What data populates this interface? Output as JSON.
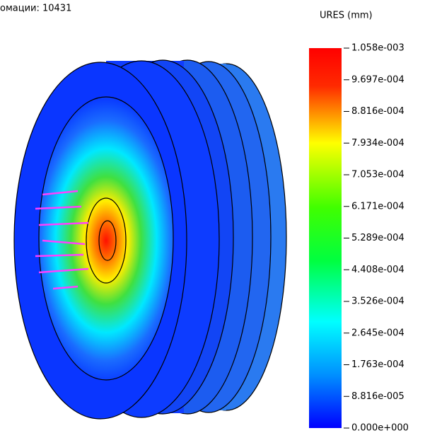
{
  "header": {
    "caption": "омации: 10431"
  },
  "legend": {
    "title": "URES (mm)",
    "labels": [
      "1.058e-003",
      "9.697e-004",
      "8.816e-004",
      "7.934e-004",
      "7.053e-004",
      "6.171e-004",
      "5.289e-004",
      "4.408e-004",
      "3.526e-004",
      "2.645e-004",
      "1.763e-004",
      "8.816e-005",
      "0.000e+000"
    ]
  }
}
